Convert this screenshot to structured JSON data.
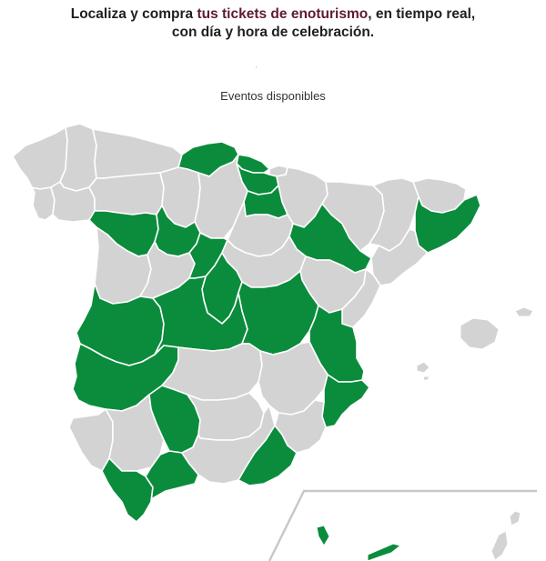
{
  "header": {
    "line1_pre": "Localiza y compra ",
    "line1_accent": "tus tickets de enoturismo",
    "line1_post": ", en tiempo real,",
    "line2": "con día y hora de celebración."
  },
  "map": {
    "subtitle": "Eventos disponibles",
    "colors": {
      "available": "#0a8c3c",
      "unavailable": "#d3d3d3"
    },
    "provinces": [
      {
        "id": "a-coruna",
        "available": false
      },
      {
        "id": "lugo",
        "available": false
      },
      {
        "id": "pontevedra",
        "available": false
      },
      {
        "id": "ourense",
        "available": false
      },
      {
        "id": "asturias",
        "available": false
      },
      {
        "id": "cantabria",
        "available": true
      },
      {
        "id": "bizkaia",
        "available": true
      },
      {
        "id": "gipuzkoa",
        "available": false
      },
      {
        "id": "araba",
        "available": true
      },
      {
        "id": "navarra",
        "available": false
      },
      {
        "id": "leon",
        "available": false
      },
      {
        "id": "palencia",
        "available": false
      },
      {
        "id": "burgos",
        "available": false
      },
      {
        "id": "la-rioja",
        "available": true
      },
      {
        "id": "huesca",
        "available": false
      },
      {
        "id": "lleida",
        "available": false
      },
      {
        "id": "girona",
        "available": false
      },
      {
        "id": "barcelona",
        "available": true
      },
      {
        "id": "zamora",
        "available": true
      },
      {
        "id": "valladolid",
        "available": true
      },
      {
        "id": "soria",
        "available": false
      },
      {
        "id": "zaragoza",
        "available": true
      },
      {
        "id": "tarragona",
        "available": false
      },
      {
        "id": "salamanca",
        "available": false
      },
      {
        "id": "avila",
        "available": false
      },
      {
        "id": "segovia",
        "available": true
      },
      {
        "id": "guadalajara",
        "available": false
      },
      {
        "id": "teruel",
        "available": false
      },
      {
        "id": "castellon",
        "available": false
      },
      {
        "id": "madrid",
        "available": true
      },
      {
        "id": "caceres",
        "available": true
      },
      {
        "id": "toledo",
        "available": true
      },
      {
        "id": "cuenca",
        "available": true
      },
      {
        "id": "valencia",
        "available": true
      },
      {
        "id": "badajoz",
        "available": true
      },
      {
        "id": "ciudad-real",
        "available": false
      },
      {
        "id": "albacete",
        "available": false
      },
      {
        "id": "alicante",
        "available": true
      },
      {
        "id": "huelva",
        "available": false
      },
      {
        "id": "sevilla",
        "available": false
      },
      {
        "id": "cordoba",
        "available": true
      },
      {
        "id": "jaen",
        "available": false
      },
      {
        "id": "murcia",
        "available": false
      },
      {
        "id": "cadiz",
        "available": true
      },
      {
        "id": "malaga",
        "available": true
      },
      {
        "id": "granada",
        "available": false
      },
      {
        "id": "almeria",
        "available": true
      },
      {
        "id": "mallorca",
        "available": false
      },
      {
        "id": "menorca",
        "available": false
      },
      {
        "id": "ibiza",
        "available": false
      },
      {
        "id": "formentera",
        "available": false
      },
      {
        "id": "la-palma",
        "available": true
      },
      {
        "id": "tenerife",
        "available": true
      },
      {
        "id": "lanzarote",
        "available": false
      },
      {
        "id": "fuerteventura",
        "available": false
      }
    ]
  }
}
